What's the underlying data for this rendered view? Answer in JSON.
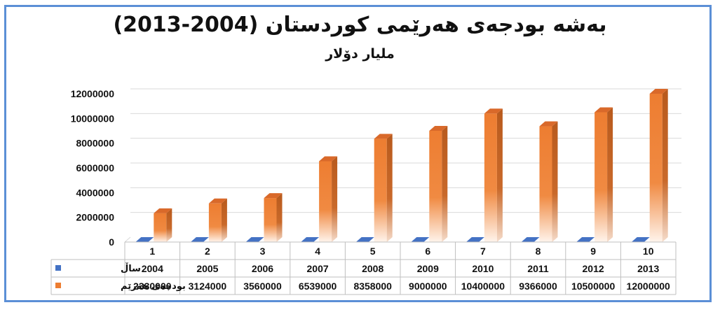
{
  "chart_data": {
    "type": "bar",
    "title": "بەشە بودجەی هەرێمی کوردستان (2004-2013)",
    "subtitle": "ملیار دۆلار",
    "categories": [
      "1",
      "2",
      "3",
      "4",
      "5",
      "6",
      "7",
      "8",
      "9",
      "10"
    ],
    "ylim": [
      0,
      12000000
    ],
    "yticks": [
      "0",
      "2000000",
      "4000000",
      "6000000",
      "8000000",
      "10000000",
      "12000000"
    ],
    "grid": true,
    "legend": "table-below",
    "series": [
      {
        "name": "ساڵ",
        "color": "#4472c4",
        "values": [
          2004,
          2005,
          2006,
          2007,
          2008,
          2009,
          2010,
          2011,
          2012,
          2013
        ]
      },
      {
        "name": "بودجەی هەرێم",
        "color": "#ed7d31",
        "values": [
          2330000,
          3124000,
          3560000,
          6539000,
          8358000,
          9000000,
          10400000,
          9366000,
          10500000,
          12000000
        ]
      }
    ]
  }
}
